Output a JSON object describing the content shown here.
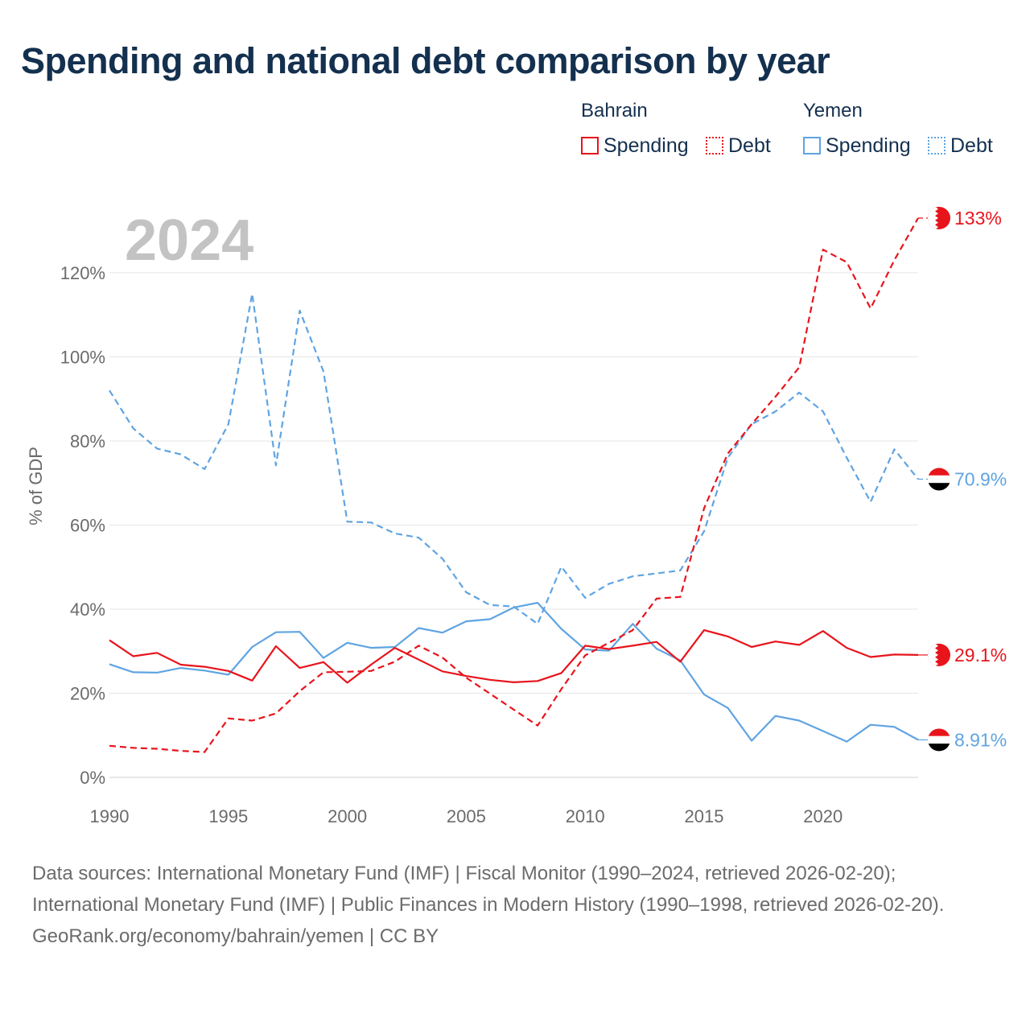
{
  "title": "Spending and national debt comparison by year",
  "legend": {
    "groups": [
      {
        "country": "Bahrain",
        "items": [
          {
            "label": "Spending",
            "color": "#e8141c",
            "style": "solid"
          },
          {
            "label": "Debt",
            "color": "#e8141c",
            "style": "dotted"
          }
        ]
      },
      {
        "country": "Yemen",
        "items": [
          {
            "label": "Spending",
            "color": "#5fa4e2",
            "style": "solid"
          },
          {
            "label": "Debt",
            "color": "#5fa4e2",
            "style": "dotted"
          }
        ]
      }
    ]
  },
  "footer": {
    "sources": "Data sources: International Monetary Fund (IMF) | Fiscal Monitor (1990–2024, retrieved 2026-02-20); International Monetary Fund (IMF) | Public Finances in Modern History (1990–1998, retrieved 2026-02-20).",
    "credit": "GeoRank.org/economy/bahrain/yemen | CC BY"
  },
  "chart_data": {
    "type": "line",
    "title": "Spending and national debt comparison by year",
    "year_label": "2024",
    "xlabel": "",
    "ylabel": "% of GDP",
    "xlim": [
      1990,
      2024
    ],
    "ylim": [
      0,
      133
    ],
    "x_ticks": [
      1990,
      1995,
      2000,
      2005,
      2010,
      2015,
      2020
    ],
    "y_ticks": [
      0,
      20,
      40,
      60,
      80,
      100,
      120
    ],
    "y_tick_labels": [
      "0%",
      "20%",
      "40%",
      "60%",
      "80%",
      "100%",
      "120%"
    ],
    "grid": true,
    "x": [
      1990,
      1991,
      1992,
      1993,
      1994,
      1995,
      1996,
      1997,
      1998,
      1999,
      2000,
      2001,
      2002,
      2003,
      2004,
      2005,
      2006,
      2007,
      2008,
      2009,
      2010,
      2011,
      2012,
      2013,
      2014,
      2015,
      2016,
      2017,
      2018,
      2019,
      2020,
      2021,
      2022,
      2023,
      2024
    ],
    "series": [
      {
        "name": "Bahrain Debt",
        "color": "#e8141c",
        "style": "dashed",
        "end_label": "133%",
        "values": [
          7.5,
          7,
          6.8,
          6.3,
          6,
          14,
          13.5,
          15.2,
          20.5,
          25,
          25.1,
          25.3,
          27.5,
          31.3,
          28.5,
          23.7,
          19.9,
          16.1,
          12.3,
          21,
          29,
          32,
          35,
          42.5,
          42.9,
          64,
          77,
          84,
          90.5,
          97.5,
          125.5,
          122.5,
          111.5,
          123,
          133
        ]
      },
      {
        "name": "Bahrain Spending",
        "color": "#e8141c",
        "style": "solid",
        "end_label": "29.1%",
        "values": [
          32.6,
          28.8,
          29.6,
          26.8,
          26.3,
          25.3,
          23,
          31.2,
          26,
          27.4,
          22.5,
          26.8,
          30.8,
          28,
          25.2,
          24.1,
          23.2,
          22.6,
          22.9,
          24.8,
          31.3,
          30.5,
          31.3,
          32.2,
          27.5,
          35,
          33.5,
          31,
          32.3,
          31.5,
          34.8,
          30.8,
          28.6,
          29.2,
          29.1
        ]
      },
      {
        "name": "Yemen Debt",
        "color": "#5fa4e2",
        "style": "dashed",
        "end_label": "70.9%",
        "values": [
          92,
          83,
          78.2,
          76.8,
          73.3,
          84,
          115,
          74.2,
          111,
          96.5,
          60.8,
          60.6,
          58,
          57,
          52,
          44,
          41,
          40.6,
          36.5,
          50.1,
          42.7,
          46,
          47.8,
          48.5,
          49.2,
          58.5,
          76,
          84,
          87,
          91.5,
          87,
          76,
          65.5,
          78,
          70.9
        ]
      },
      {
        "name": "Yemen Spending",
        "color": "#5fa4e2",
        "style": "solid",
        "end_label": "8.91%",
        "values": [
          26.9,
          25,
          24.9,
          26,
          25.4,
          24.4,
          31,
          34.5,
          34.6,
          28.4,
          32,
          30.8,
          31,
          35.5,
          34.4,
          37.1,
          37.6,
          40.4,
          41.5,
          35.3,
          30.4,
          30.1,
          36.5,
          30.6,
          27.8,
          19.7,
          16.5,
          8.7,
          14.6,
          13.5,
          11,
          8.5,
          12.5,
          12,
          8.91
        ]
      }
    ]
  }
}
